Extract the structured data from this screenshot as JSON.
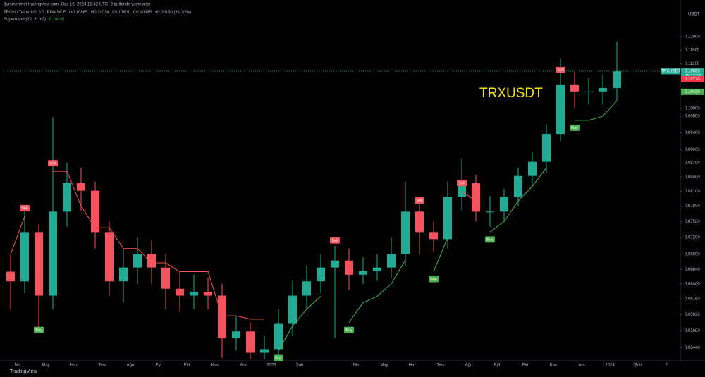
{
  "chart_data": {
    "type": "candlestick",
    "publisher": "dursmehmet tradingview.com, Oca 16, 2024 18:42 UTC+3 tarihinde yayınlandı",
    "symbol": "TRON / TetherUS, 1G, BINANCE",
    "ohlc_legend": [
      "O0.10865",
      "H0.11034",
      "L0.10801",
      "C0.10995"
    ],
    "change": "+0.00130 (+1.20%)",
    "indicator": "Supertrend (22, 3, hl2)",
    "indicator_value": "0.10430",
    "currency": "USDT",
    "annotation": "TRXUSDT",
    "logo": "TradingView",
    "log_scale": true,
    "up_color": "#22ab94",
    "down_color": "#f7525f",
    "categories": [
      null,
      "Nis",
      null,
      "May",
      null,
      "Haz",
      null,
      "Tem",
      null,
      "Ağu",
      null,
      "Eyl",
      null,
      "Eki",
      null,
      "Kas",
      null,
      "Ara",
      null,
      "2023",
      null,
      "Şub",
      null,
      null,
      null,
      "Nis",
      null,
      "May",
      null,
      "Haz",
      null,
      "Tem",
      null,
      "Ağu",
      null,
      "Eyl",
      null,
      "Eki",
      null,
      "Kas",
      null,
      "Ara",
      null,
      "2024",
      null,
      "Şub",
      null,
      "2"
    ],
    "open": [
      0.066,
      0.0644,
      0.073,
      0.0621,
      0.0769,
      0.0827,
      0.0811,
      0.073,
      0.0644,
      0.0667,
      0.0691,
      0.0667,
      0.0632,
      0.0621,
      0.0627,
      0.0621,
      0.0557,
      0.0567,
      0.0537,
      0.0542,
      0.0578,
      0.0621,
      0.0644,
      0.0667,
      0.0679,
      0.0655,
      0.0661,
      0.0667,
      0.0691,
      0.0769,
      0.073,
      0.0717,
      0.0798,
      0.0827,
      0.0769,
      0.0769,
      0.0798,
      0.0842,
      0.0873,
      0.0937,
      0.1063,
      0.1044,
      0.1044,
      0.1053,
      null,
      null,
      null,
      null
    ],
    "high": [
      0.069,
      0.077,
      0.0745,
      0.0978,
      0.087,
      0.086,
      0.083,
      0.075,
      0.07,
      0.072,
      0.0715,
      0.069,
      0.066,
      0.0655,
      0.065,
      0.064,
      0.059,
      0.058,
      0.056,
      0.06,
      0.0645,
      0.067,
      0.069,
      0.0705,
      0.07,
      0.0685,
      0.069,
      0.072,
      0.083,
      0.079,
      0.075,
      0.083,
      0.088,
      0.0845,
      0.08,
      0.0815,
      0.086,
      0.0895,
      0.096,
      0.1135,
      0.11,
      0.108,
      0.109,
      0.1185,
      null,
      null,
      null,
      null
    ],
    "low": [
      0.06,
      0.0625,
      0.057,
      0.06,
      0.074,
      0.077,
      0.07,
      0.062,
      0.061,
      0.064,
      0.064,
      0.06,
      0.0595,
      0.06,
      0.06,
      0.053,
      0.054,
      0.0528,
      0.0528,
      0.053,
      0.056,
      0.06,
      0.0625,
      0.0557,
      0.063,
      0.064,
      0.0645,
      0.065,
      0.067,
      0.069,
      0.0695,
      0.07,
      0.077,
      0.075,
      0.074,
      0.075,
      0.078,
      0.082,
      0.085,
      0.092,
      0.1,
      0.101,
      0.101,
      0.102,
      null,
      null,
      null,
      null
    ],
    "close": [
      0.0644,
      0.073,
      0.0621,
      0.0769,
      0.0827,
      0.0811,
      0.073,
      0.0644,
      0.0667,
      0.0691,
      0.0667,
      0.0632,
      0.0621,
      0.0627,
      0.0621,
      0.0557,
      0.0567,
      0.0537,
      0.0542,
      0.0578,
      0.0621,
      0.0644,
      0.0667,
      0.0679,
      0.0655,
      0.0661,
      0.0667,
      0.0691,
      0.0769,
      0.073,
      0.0717,
      0.0798,
      0.0827,
      0.0769,
      0.0769,
      0.0798,
      0.0842,
      0.0873,
      0.0937,
      0.1063,
      0.1044,
      0.1044,
      0.1053,
      0.1099,
      null,
      null,
      null,
      null
    ],
    "series": [
      {
        "color": "#ff5252",
        "values": [
          0.069,
          0.076,
          null,
          0.0852,
          0.0852,
          0.078,
          0.0738,
          0.0738,
          0.07,
          0.07,
          0.0675,
          0.0675,
          0.066,
          0.066,
          0.066,
          0.059,
          0.059,
          0.0585,
          0.0585,
          null,
          null,
          null,
          null,
          0.07,
          null,
          null,
          null,
          null,
          null,
          0.0775,
          null,
          null,
          0.081,
          0.079,
          null,
          null,
          null,
          null,
          null,
          0.108,
          null,
          null,
          null,
          null,
          null,
          null,
          null,
          null
        ]
      },
      {
        "color": "#4caf50",
        "values": [
          null,
          null,
          0.058,
          null,
          null,
          null,
          null,
          null,
          null,
          null,
          null,
          null,
          null,
          null,
          null,
          null,
          null,
          null,
          null,
          0.054,
          0.0575,
          0.06,
          0.062,
          null,
          0.058,
          0.061,
          0.062,
          0.064,
          0.068,
          null,
          0.066,
          0.072,
          null,
          null,
          0.073,
          0.075,
          0.079,
          0.082,
          0.086,
          null,
          0.097,
          0.097,
          0.098,
          0.102,
          null,
          null,
          null,
          null
        ]
      }
    ],
    "signals": [
      {
        "label": "Sell",
        "index": 1,
        "value": 0.076,
        "color": "#f7525f"
      },
      {
        "label": "Buy",
        "index": 2,
        "value": 0.058,
        "color": "#4caf50"
      },
      {
        "label": "Sell",
        "index": 3,
        "value": 0.0852,
        "color": "#f7525f"
      },
      {
        "label": "Buy",
        "index": 19,
        "value": 0.054,
        "color": "#4caf50"
      },
      {
        "label": "Sell",
        "index": 23,
        "value": 0.07,
        "color": "#f7525f"
      },
      {
        "label": "Buy",
        "index": 24,
        "value": 0.058,
        "color": "#4caf50"
      },
      {
        "label": "Sell",
        "index": 29,
        "value": 0.0775,
        "color": "#f7525f"
      },
      {
        "label": "Buy",
        "index": 30,
        "value": 0.066,
        "color": "#4caf50"
      },
      {
        "label": "Sell",
        "index": 32,
        "value": 0.081,
        "color": "#f7525f"
      },
      {
        "label": "Buy",
        "index": 34,
        "value": 0.073,
        "color": "#4caf50"
      },
      {
        "label": "Sell",
        "index": 39,
        "value": 0.108,
        "color": "#f7525f"
      },
      {
        "label": "Buy",
        "index": 40,
        "value": 0.097,
        "color": "#4caf50"
      }
    ],
    "price_tags": [
      {
        "name": "TRXUSDT",
        "value": 0.10995,
        "label": "0.10995",
        "countdown": "05:17:17",
        "color": "#22ab94"
      },
      {
        "value": 0.1077,
        "label": "0.10770",
        "color": "#f23645"
      },
      {
        "value": 0.1043,
        "label": "0.10430",
        "color": "#4caf50"
      }
    ],
    "ylim": [
      0.0528,
      0.1285
    ],
    "yticks": [
      {
        "value": 0.0544,
        "label": "0.05440"
      },
      {
        "value": 0.0568,
        "label": "0.05680"
      },
      {
        "value": 0.0592,
        "label": "0.05920"
      },
      {
        "value": 0.0616,
        "label": "0.06160"
      },
      {
        "value": 0.064,
        "label": "0.06400"
      },
      {
        "value": 0.0664,
        "label": "0.06640"
      },
      {
        "value": 0.069,
        "label": "0.06900"
      },
      {
        "value": 0.072,
        "label": "0.07200"
      },
      {
        "value": 0.075,
        "label": "0.07500"
      },
      {
        "value": 0.078,
        "label": "0.07800"
      },
      {
        "value": 0.081,
        "label": "0.08100"
      },
      {
        "value": 0.084,
        "label": "0.08400"
      },
      {
        "value": 0.087,
        "label": "0.08700"
      },
      {
        "value": 0.09,
        "label": "0.09000"
      },
      {
        "value": 0.094,
        "label": "0.09400"
      },
      {
        "value": 0.098,
        "label": "0.09800"
      },
      {
        "value": 0.1,
        "label": "0.10000"
      },
      {
        "value": 0.112,
        "label": "0.11200"
      },
      {
        "value": 0.116,
        "label": "0.11600"
      },
      {
        "value": 0.12,
        "label": "0.12000"
      }
    ]
  }
}
